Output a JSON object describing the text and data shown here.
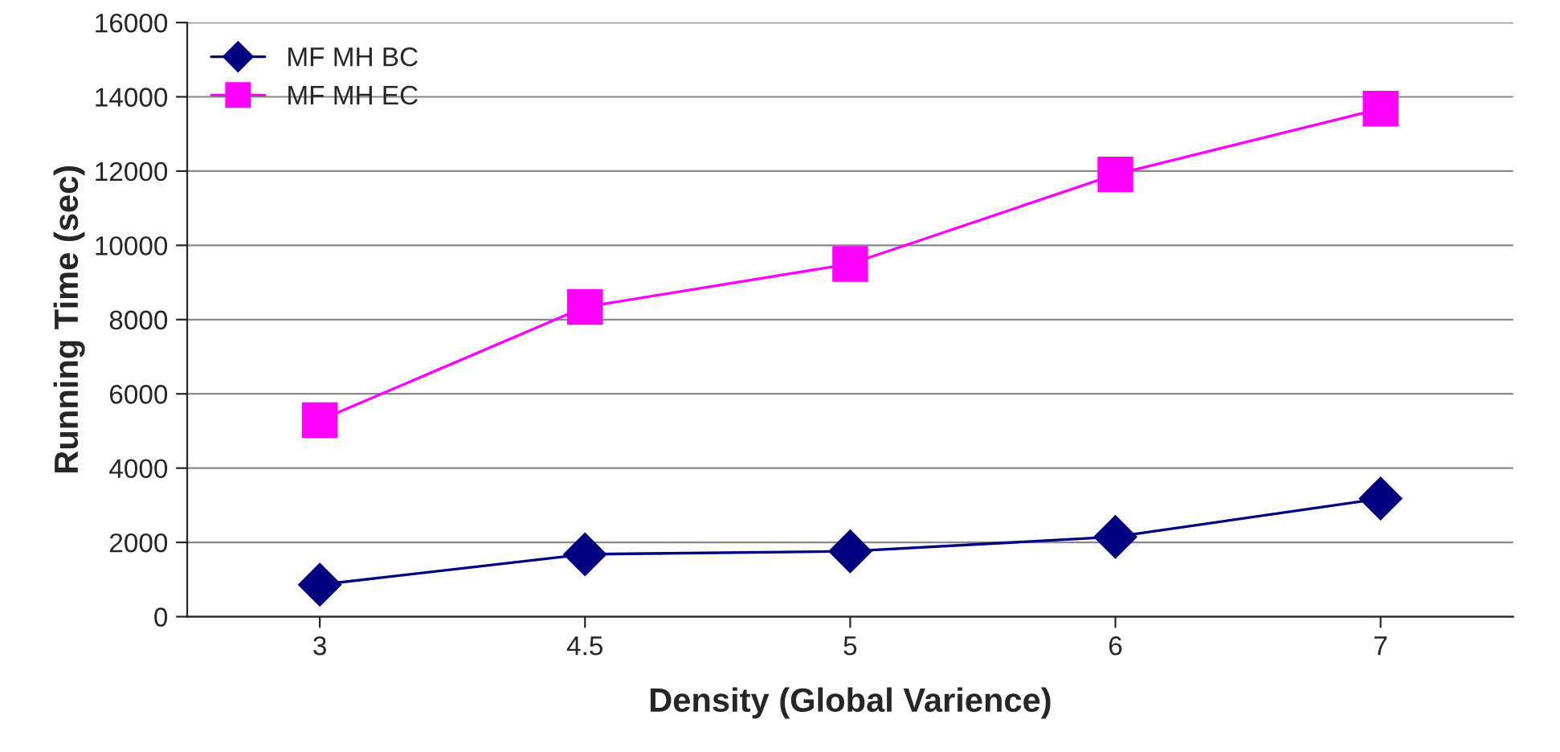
{
  "chart_data": {
    "type": "line",
    "xlabel": "Density (Global Varience)",
    "ylabel": "Running Time (sec)",
    "categories": [
      "3",
      "4.5",
      "5",
      "6",
      "7"
    ],
    "series": [
      {
        "name": "MF MH BC",
        "color": "#000080",
        "marker": "diamond",
        "values": [
          860,
          1680,
          1760,
          2150,
          3180
        ]
      },
      {
        "name": "MF MH EC",
        "color": "#ff00ff",
        "marker": "square",
        "values": [
          5290,
          8340,
          9500,
          11910,
          13680
        ]
      }
    ],
    "ylim": [
      0,
      16000
    ],
    "yticks": [
      0,
      2000,
      4000,
      6000,
      8000,
      10000,
      12000,
      14000,
      16000
    ],
    "grid": "y",
    "legend": "top left",
    "line_style": "solid"
  }
}
